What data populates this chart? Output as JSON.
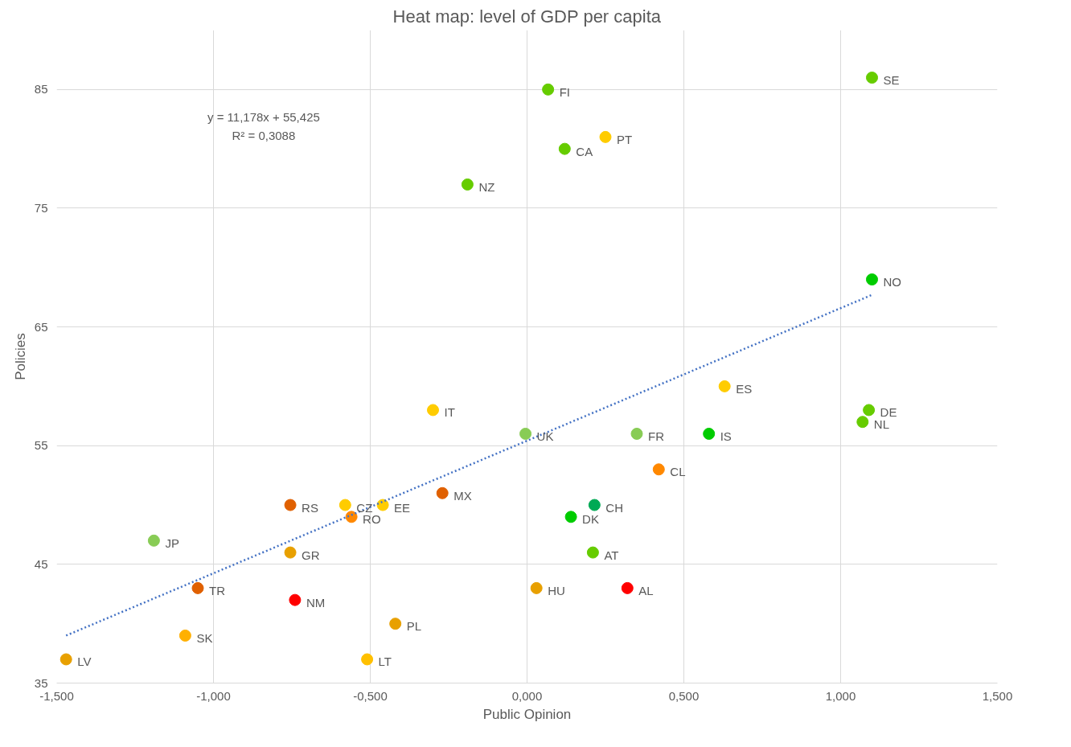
{
  "chart_data": {
    "type": "scatter",
    "title": "Heat map: level of GDP per capita",
    "xlabel": "Public Opinion",
    "ylabel": "Policies",
    "xlim": [
      -1.5,
      1.5
    ],
    "ylim": [
      35,
      90
    ],
    "xticks": [
      {
        "value": -1.5,
        "label": "-1,500"
      },
      {
        "value": -1.0,
        "label": "-1,000"
      },
      {
        "value": -0.5,
        "label": "-0,500"
      },
      {
        "value": 0,
        "label": "0,000"
      },
      {
        "value": 0.5,
        "label": "0,500"
      },
      {
        "value": 1.0,
        "label": "1,000"
      },
      {
        "value": 1.5,
        "label": "1,500"
      }
    ],
    "yticks": [
      35,
      45,
      55,
      65,
      75,
      85
    ],
    "grid": true,
    "marker": "circle",
    "series": [
      {
        "x": [
          0.067,
          1.1,
          0.25,
          0.12,
          -0.19,
          1.1,
          0.63,
          1.09,
          1.07,
          -0.3,
          -0.005,
          0.35,
          0.58,
          0.42,
          -0.27,
          -0.58,
          -0.755,
          -0.46,
          -0.56,
          0.14,
          0.215,
          -1.19,
          -0.755,
          0.21,
          -1.05,
          0.03,
          0.32,
          -0.74,
          -0.42,
          -1.09,
          -1.47,
          -0.51
        ],
        "values": [
          85,
          86,
          81,
          80,
          77,
          69,
          60,
          58,
          57,
          58,
          56,
          56,
          56,
          53,
          51,
          50,
          50,
          50,
          49,
          49,
          50,
          47,
          46,
          46,
          43,
          43,
          43,
          42,
          40,
          39,
          37,
          37
        ],
        "colors": [
          "#66cc00",
          "#66cc00",
          "#ffcc00",
          "#66cc00",
          "#66cc00",
          "#00cc00",
          "#ffcc00",
          "#66cc00",
          "#66cc00",
          "#ffcc00",
          "#88cc55",
          "#88cc55",
          "#00cc00",
          "#ff8800",
          "#e06000",
          "#ffcc00",
          "#e06000",
          "#ffcc00",
          "#ff8800",
          "#00cc00",
          "#00aa55",
          "#88cc55",
          "#e8a000",
          "#66cc00",
          "#e06000",
          "#e8a000",
          "#ff0000",
          "#ff0000",
          "#e8a000",
          "#ffb000",
          "#e8a000",
          "#ffc000"
        ]
      },
      {
        "type": "line",
        "x": [
          -1.47,
          1.1
        ],
        "values": [
          39.0,
          67.7
        ],
        "color": "#4472c4",
        "line_style": "dotted",
        "marker": "none"
      }
    ],
    "annotations": [
      "y = 11,178x + 55,425",
      "R² = 0,3088",
      {
        "text": "FI",
        "x": 0.067,
        "y": 85
      },
      {
        "text": "SE",
        "x": 1.1,
        "y": 86
      },
      {
        "text": "PT",
        "x": 0.25,
        "y": 81
      },
      {
        "text": "CA",
        "x": 0.12,
        "y": 80
      },
      {
        "text": "NZ",
        "x": -0.19,
        "y": 77
      },
      {
        "text": "NO",
        "x": 1.1,
        "y": 69
      },
      {
        "text": "ES",
        "x": 0.63,
        "y": 60
      },
      {
        "text": "DE",
        "x": 1.09,
        "y": 58
      },
      {
        "text": "NL",
        "x": 1.07,
        "y": 57
      },
      {
        "text": "IT",
        "x": -0.3,
        "y": 58
      },
      {
        "text": "UK",
        "x": -0.005,
        "y": 56
      },
      {
        "text": "FR",
        "x": 0.35,
        "y": 56
      },
      {
        "text": "IS",
        "x": 0.58,
        "y": 56
      },
      {
        "text": "CL",
        "x": 0.42,
        "y": 53
      },
      {
        "text": "MX",
        "x": -0.27,
        "y": 51
      },
      {
        "text": "CZ",
        "x": -0.58,
        "y": 50
      },
      {
        "text": "RS",
        "x": -0.755,
        "y": 50
      },
      {
        "text": "EE",
        "x": -0.46,
        "y": 50
      },
      {
        "text": "RO",
        "x": -0.56,
        "y": 49
      },
      {
        "text": "DK",
        "x": 0.14,
        "y": 49
      },
      {
        "text": "CH",
        "x": 0.215,
        "y": 50
      },
      {
        "text": "JP",
        "x": -1.19,
        "y": 47
      },
      {
        "text": "GR",
        "x": -0.755,
        "y": 46
      },
      {
        "text": "AT",
        "x": 0.21,
        "y": 46
      },
      {
        "text": "TR",
        "x": -1.05,
        "y": 43
      },
      {
        "text": "HU",
        "x": 0.03,
        "y": 43
      },
      {
        "text": "AL",
        "x": 0.32,
        "y": 43
      },
      {
        "text": "NM",
        "x": -0.74,
        "y": 42
      },
      {
        "text": "PL",
        "x": -0.42,
        "y": 40
      },
      {
        "text": "SK",
        "x": -1.09,
        "y": 39
      },
      {
        "text": "LV",
        "x": -1.47,
        "y": 37
      },
      {
        "text": "LT",
        "x": -0.51,
        "y": 37
      }
    ]
  }
}
